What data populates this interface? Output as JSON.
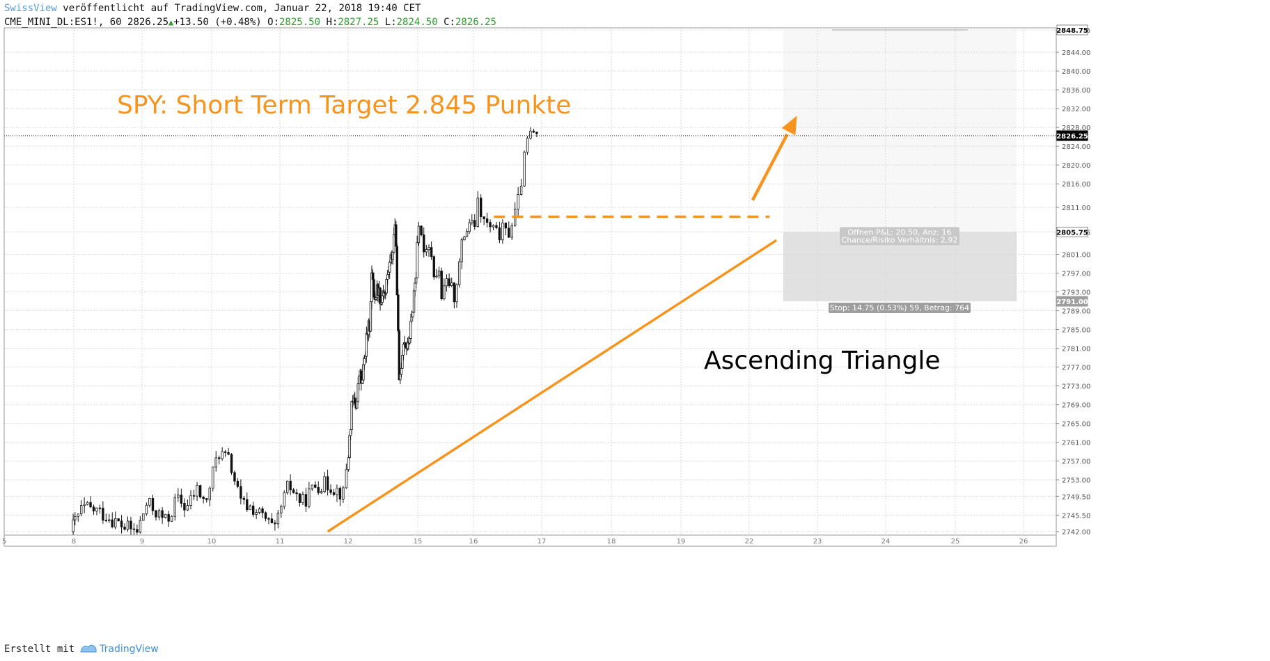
{
  "header": {
    "publisher": "SwissView",
    "published_text": "veröffentlicht auf TradingView.com, Januar 22, 2018 19:40 CET",
    "symbol": "CME_MINI_DL:ES1!, 60",
    "last": "2826.25",
    "change": "+13.50 (+0.48%)",
    "open_label": "O:",
    "open": "2825.50",
    "high_label": "H:",
    "high": "2827.25",
    "low_label": "L:",
    "low": "2824.50",
    "close_label": "C:",
    "close": "2826.25"
  },
  "footer": {
    "created_with": "Erstellt mit",
    "brand": "TradingView"
  },
  "colors": {
    "accent": "#f7941d",
    "candle": "#111111",
    "grid": "#d9d9d9",
    "brand": "#3d8fd6",
    "price_tag": "#000000",
    "stop_tag": "#9e9e9e",
    "target_zone": "#f7f7f7",
    "stop_zone": "#e1e1e1"
  },
  "chart_data": {
    "type": "candlestick",
    "symbol": "CME_MINI_DL:ES1!",
    "interval": "60",
    "ylim": [
      2741,
      2850
    ],
    "y_ticks": [
      "2742.00",
      "2745.50",
      "2749.50",
      "2753.00",
      "2757.00",
      "2761.00",
      "2765.00",
      "2769.00",
      "2773.00",
      "2777.00",
      "2781.00",
      "2785.00",
      "2789.00",
      "2793.00",
      "2797.00",
      "2801.00",
      "2805.75",
      "2811.00",
      "2816.00",
      "2820.00",
      "2824.00",
      "2828.00",
      "2832.00",
      "2836.00",
      "2840.00",
      "2844.00",
      "2848.75"
    ],
    "x_ticks": [
      "5",
      "8",
      "9",
      "10",
      "11",
      "12",
      "15",
      "16",
      "17",
      "18",
      "19",
      "22",
      "23",
      "24",
      "25",
      "26"
    ],
    "price_markers": [
      {
        "label": "2848.75",
        "value": 2848.75,
        "style": "plain"
      },
      {
        "label": "2826.25",
        "value": 2826.25,
        "style": "current"
      },
      {
        "label": "2805.75",
        "value": 2805.75,
        "style": "plain"
      },
      {
        "label": "2791.00",
        "value": 2791.0,
        "style": "stop"
      }
    ],
    "annotations": {
      "title": "SPY: Short Term Target 2.845 Punkte",
      "pattern": "Ascending Triangle",
      "position_open": "Offnen P&L: 20.50, Anz: 16",
      "position_ratio": "Chance/Risiko Verhältnis: 2.92",
      "position_stop": "Stop: 14.75 (0.53%) 59, Betrag: 764"
    },
    "resistance_level": 2809,
    "support_line": [
      [
        11.7,
        2742
      ],
      [
        22.4,
        2804
      ]
    ],
    "breakout_arrow": [
      [
        22.05,
        2812.5
      ],
      [
        22.7,
        2830.5
      ]
    ],
    "trade_box": {
      "entry": 2805.75,
      "target": 2848.75,
      "stop": 2791.0,
      "from": 22.5,
      "to": 25.9
    },
    "segments": [
      {
        "x": [
          7.95,
          8.95
        ],
        "p": [
          2742,
          2747,
          2746.5,
          2745,
          2743,
          2742
        ]
      },
      {
        "x": [
          8.95,
          9.95
        ],
        "p": [
          2742,
          2748,
          2746,
          2744,
          2749,
          2747,
          2751,
          2748
        ]
      },
      {
        "x": [
          9.95,
          10.95
        ],
        "p": [
          2749,
          2759,
          2757,
          2748,
          2747,
          2745,
          2742
        ]
      },
      {
        "x": [
          10.95,
          11.95
        ],
        "p": [
          2743,
          2752,
          2748,
          2752,
          2752,
          2750
        ]
      },
      {
        "x": [
          11.95,
          12.95
        ],
        "p": [
          2752,
          2760,
          2768,
          2770,
          2769,
          2776,
          2773,
          2779,
          2784,
          2786
        ]
      },
      {
        "x": [
          12.95,
          13.95
        ],
        "p": [
          2786,
          2797,
          2793,
          2792,
          2794,
          2793,
          2791,
          2794,
          2792,
          2796,
          2798,
          2800,
          2802
        ]
      },
      {
        "x": [
          13.95,
          14.95
        ],
        "p": [
          2802,
          2808,
          2794,
          2773,
          2778,
          2783,
          2782,
          2781,
          2784,
          2787,
          2793,
          2797
        ]
      },
      {
        "x": [
          14.95,
          15.95
        ],
        "p": [
          2797,
          2806,
          2805,
          2803,
          2802,
          2804,
          2799,
          2796,
          2798,
          2792,
          2793,
          2796,
          2794,
          2792,
          2796,
          2800,
          2805,
          2806,
          2808
        ]
      },
      {
        "x": [
          15.95,
          16.95
        ],
        "p": [
          2808,
          2806,
          2812,
          2808,
          2807,
          2806,
          2805,
          2806,
          2805,
          2808,
          2811,
          2818,
          2825,
          2827,
          2826.25
        ]
      }
    ]
  }
}
